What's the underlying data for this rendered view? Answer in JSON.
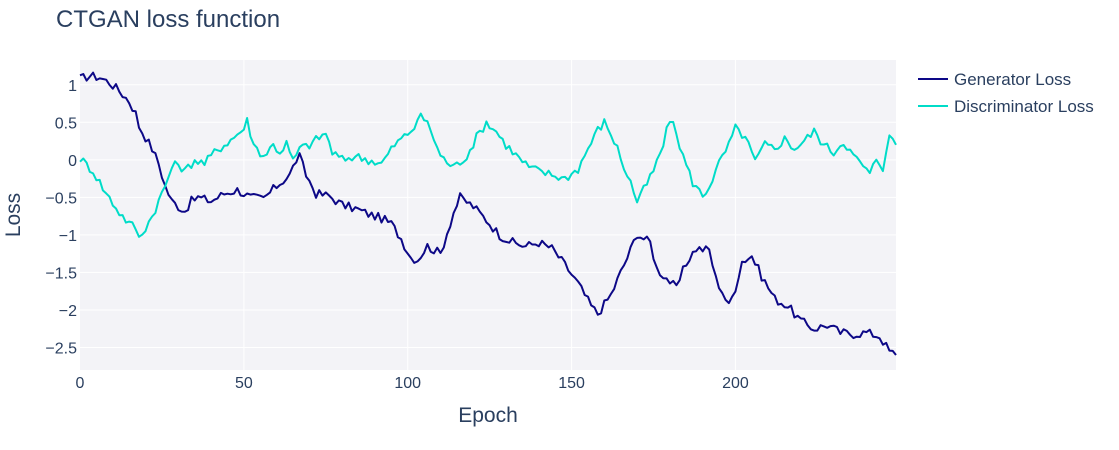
{
  "chart_data": {
    "type": "line",
    "title": "CTGAN loss function",
    "xlabel": "Epoch",
    "ylabel": "Loss",
    "xlim": [
      0,
      249
    ],
    "ylim": [
      -2.8,
      1.33
    ],
    "x_ticks": [
      0,
      50,
      100,
      150,
      200
    ],
    "y_ticks": [
      1,
      0.5,
      0,
      -0.5,
      -1,
      -1.5,
      -2,
      -2.5
    ],
    "y_tick_labels": [
      "1",
      "0.5",
      "0",
      "−0.5",
      "−1",
      "−1.5",
      "−2",
      "−2.5"
    ],
    "grid": true,
    "legend_position": "top-right",
    "series": [
      {
        "name": "Generator Loss",
        "color": "#0d0887",
        "points": [
          [
            0,
            1.08
          ],
          [
            3,
            1.12
          ],
          [
            6,
            1.1
          ],
          [
            9,
            1.03
          ],
          [
            12,
            0.92
          ],
          [
            15,
            0.78
          ],
          [
            17,
            0.62
          ],
          [
            18,
            0.45
          ],
          [
            20,
            0.3
          ],
          [
            22,
            0.15
          ],
          [
            24,
            -0.05
          ],
          [
            26,
            -0.35
          ],
          [
            28,
            -0.55
          ],
          [
            30,
            -0.62
          ],
          [
            32,
            -0.68
          ],
          [
            34,
            -0.55
          ],
          [
            36,
            -0.5
          ],
          [
            40,
            -0.55
          ],
          [
            44,
            -0.45
          ],
          [
            48,
            -0.4
          ],
          [
            52,
            -0.5
          ],
          [
            56,
            -0.52
          ],
          [
            60,
            -0.35
          ],
          [
            64,
            -0.2
          ],
          [
            66,
            0.0
          ],
          [
            67,
            0.04
          ],
          [
            69,
            -0.2
          ],
          [
            72,
            -0.45
          ],
          [
            76,
            -0.48
          ],
          [
            80,
            -0.6
          ],
          [
            84,
            -0.65
          ],
          [
            88,
            -0.72
          ],
          [
            92,
            -0.78
          ],
          [
            95,
            -0.85
          ],
          [
            98,
            -1.05
          ],
          [
            101,
            -1.3
          ],
          [
            103,
            -1.33
          ],
          [
            106,
            -1.15
          ],
          [
            110,
            -1.25
          ],
          [
            114,
            -0.7
          ],
          [
            116,
            -0.5
          ],
          [
            120,
            -0.62
          ],
          [
            124,
            -0.8
          ],
          [
            128,
            -1.0
          ],
          [
            132,
            -1.1
          ],
          [
            136,
            -1.15
          ],
          [
            140,
            -1.1
          ],
          [
            144,
            -1.18
          ],
          [
            148,
            -1.4
          ],
          [
            152,
            -1.65
          ],
          [
            156,
            -1.95
          ],
          [
            158,
            -2.05
          ],
          [
            162,
            -1.8
          ],
          [
            165,
            -1.5
          ],
          [
            168,
            -1.2
          ],
          [
            170,
            -0.98
          ],
          [
            172,
            -1.05
          ],
          [
            174,
            -1.1
          ],
          [
            176,
            -1.45
          ],
          [
            180,
            -1.62
          ],
          [
            182,
            -1.72
          ],
          [
            184,
            -1.48
          ],
          [
            186,
            -1.3
          ],
          [
            188,
            -1.18
          ],
          [
            192,
            -1.2
          ],
          [
            194,
            -1.58
          ],
          [
            196,
            -1.75
          ],
          [
            198,
            -1.95
          ],
          [
            200,
            -1.7
          ],
          [
            202,
            -1.35
          ],
          [
            205,
            -1.28
          ],
          [
            208,
            -1.55
          ],
          [
            212,
            -1.85
          ],
          [
            216,
            -1.95
          ],
          [
            220,
            -2.15
          ],
          [
            224,
            -2.25
          ],
          [
            228,
            -2.2
          ],
          [
            232,
            -2.3
          ],
          [
            236,
            -2.32
          ],
          [
            240,
            -2.3
          ],
          [
            244,
            -2.35
          ],
          [
            247,
            -2.55
          ],
          [
            249,
            -2.6
          ]
        ]
      },
      {
        "name": "Discriminator Loss",
        "color": "#00dcc8",
        "points": [
          [
            0,
            0.02
          ],
          [
            4,
            -0.15
          ],
          [
            8,
            -0.45
          ],
          [
            12,
            -0.7
          ],
          [
            15,
            -0.85
          ],
          [
            17,
            -0.9
          ],
          [
            18,
            -1.05
          ],
          [
            20,
            -0.9
          ],
          [
            22,
            -0.75
          ],
          [
            24,
            -0.55
          ],
          [
            26,
            -0.35
          ],
          [
            28,
            -0.1
          ],
          [
            30,
            -0.05
          ],
          [
            32,
            -0.15
          ],
          [
            35,
            0.0
          ],
          [
            38,
            -0.05
          ],
          [
            41,
            0.1
          ],
          [
            44,
            0.2
          ],
          [
            47,
            0.3
          ],
          [
            50,
            0.42
          ],
          [
            51,
            0.52
          ],
          [
            53,
            0.2
          ],
          [
            56,
            0.05
          ],
          [
            59,
            0.2
          ],
          [
            61,
            0.1
          ],
          [
            63,
            0.22
          ],
          [
            65,
            -0.02
          ],
          [
            67,
            0.15
          ],
          [
            70,
            0.2
          ],
          [
            73,
            0.3
          ],
          [
            75,
            0.35
          ],
          [
            77,
            0.1
          ],
          [
            80,
            0.0
          ],
          [
            84,
            0.05
          ],
          [
            88,
            0.0
          ],
          [
            92,
            -0.05
          ],
          [
            96,
            0.2
          ],
          [
            100,
            0.35
          ],
          [
            103,
            0.48
          ],
          [
            104,
            0.62
          ],
          [
            107,
            0.4
          ],
          [
            110,
            0.05
          ],
          [
            114,
            -0.1
          ],
          [
            118,
            0.05
          ],
          [
            121,
            0.3
          ],
          [
            124,
            0.5
          ],
          [
            127,
            0.38
          ],
          [
            130,
            0.2
          ],
          [
            134,
            0.02
          ],
          [
            137,
            -0.1
          ],
          [
            140,
            -0.15
          ],
          [
            144,
            -0.2
          ],
          [
            148,
            -0.25
          ],
          [
            152,
            -0.12
          ],
          [
            155,
            0.15
          ],
          [
            158,
            0.4
          ],
          [
            160,
            0.5
          ],
          [
            162,
            0.35
          ],
          [
            164,
            0.15
          ],
          [
            166,
            -0.1
          ],
          [
            168,
            -0.3
          ],
          [
            170,
            -0.55
          ],
          [
            172,
            -0.4
          ],
          [
            175,
            -0.15
          ],
          [
            178,
            0.2
          ],
          [
            180,
            0.55
          ],
          [
            182,
            0.35
          ],
          [
            184,
            0.05
          ],
          [
            187,
            -0.3
          ],
          [
            190,
            -0.48
          ],
          [
            192,
            -0.35
          ],
          [
            195,
            -0.05
          ],
          [
            198,
            0.2
          ],
          [
            200,
            0.42
          ],
          [
            203,
            0.3
          ],
          [
            206,
            -0.02
          ],
          [
            209,
            0.2
          ],
          [
            212,
            0.15
          ],
          [
            215,
            0.28
          ],
          [
            218,
            0.15
          ],
          [
            221,
            0.25
          ],
          [
            224,
            0.38
          ],
          [
            227,
            0.2
          ],
          [
            230,
            0.1
          ],
          [
            233,
            0.25
          ],
          [
            236,
            0.05
          ],
          [
            239,
            -0.08
          ],
          [
            241,
            -0.2
          ],
          [
            243,
            0.02
          ],
          [
            245,
            -0.1
          ],
          [
            246,
            0.15
          ],
          [
            247,
            0.3
          ],
          [
            249,
            0.2
          ]
        ]
      }
    ]
  }
}
